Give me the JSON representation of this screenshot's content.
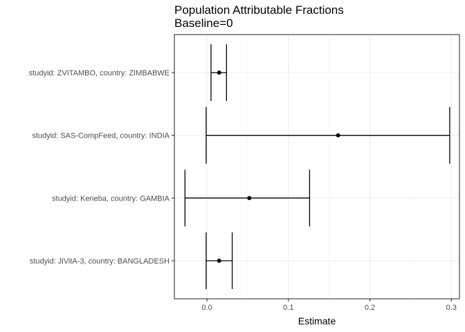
{
  "chart_data": {
    "type": "scatter",
    "chart_kind": "forest plot (point estimates with confidence-interval error bars)",
    "title": "Population Attributable Fractions",
    "subtitle": "Baseline=0",
    "xlabel": "Estimate",
    "ylabel": "",
    "xlim": [
      -0.04,
      0.31
    ],
    "x_ticks": [
      0.0,
      0.1,
      0.2,
      0.3
    ],
    "x_tick_labels": [
      "0.0",
      "0.1",
      "0.2",
      "0.3"
    ],
    "grid": true,
    "legend": "none",
    "categories": [
      "studyid: ZVITAMBO, country: ZIMBABWE",
      "studyid: SAS-CompFeed, country: INDIA",
      "studyid: Keneba, country: GAMBIA",
      "studyid: JiVitA-3, country: BANGLADESH"
    ],
    "series": [
      {
        "estimate": [
          0.015,
          0.161,
          0.052,
          0.015
        ],
        "lower": [
          0.005,
          -0.001,
          -0.027,
          -0.001
        ],
        "upper": [
          0.024,
          0.298,
          0.126,
          0.031
        ]
      }
    ],
    "colors": {
      "marks": "#000000",
      "grid": "#ebebeb",
      "panel_border": "#333333",
      "tick_text": "#4d4d4d"
    }
  }
}
